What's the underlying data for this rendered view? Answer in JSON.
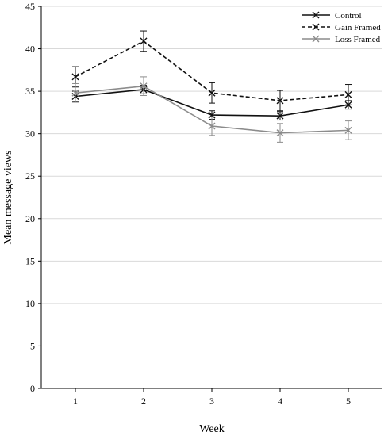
{
  "chart_data": {
    "type": "line",
    "title": "",
    "xlabel": "Week",
    "ylabel": "Mean message views",
    "x": [
      1,
      2,
      3,
      4,
      5
    ],
    "xticks": [
      "1",
      "2",
      "3",
      "4",
      "5"
    ],
    "xlim": [
      0.5,
      5.5
    ],
    "ylim": [
      0,
      45
    ],
    "yticks": [
      0,
      5,
      10,
      15,
      20,
      25,
      30,
      35,
      40,
      45
    ],
    "grid": "horizontal",
    "legend_position": "top-right",
    "series": [
      {
        "name": "Control",
        "color": "#111111",
        "dash": "solid",
        "marker": "x",
        "values": [
          34.4,
          35.2,
          32.2,
          32.1,
          33.4
        ],
        "error": [
          0.6,
          0.5,
          0.5,
          0.5,
          0.5
        ]
      },
      {
        "name": "Gain Framed",
        "color": "#111111",
        "dash": "dashed",
        "marker": "x",
        "values": [
          36.7,
          40.9,
          34.8,
          33.9,
          34.6
        ],
        "error": [
          1.2,
          1.2,
          1.2,
          1.2,
          1.2
        ]
      },
      {
        "name": "Loss Framed",
        "color": "#8c8c8c",
        "dash": "solid",
        "marker": "x",
        "values": [
          34.8,
          35.6,
          30.9,
          30.1,
          30.4
        ],
        "error": [
          1.1,
          1.1,
          1.1,
          1.1,
          1.1
        ]
      }
    ]
  }
}
